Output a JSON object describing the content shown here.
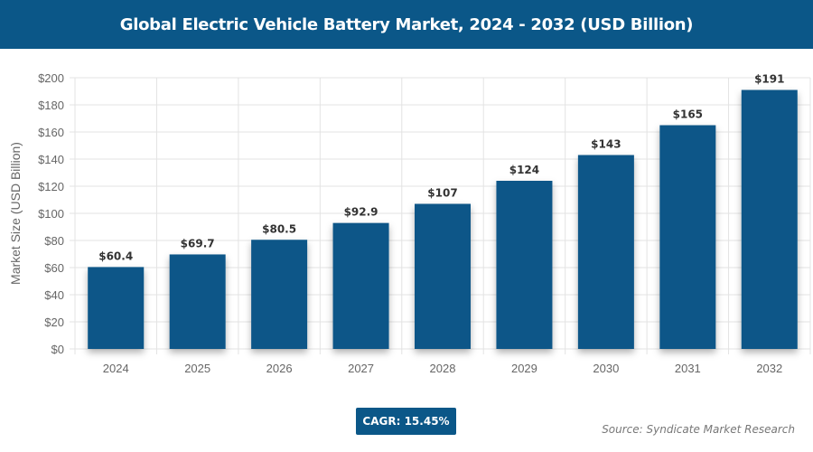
{
  "header": {
    "title": "Global Electric Vehicle Battery Market, 2024 - 2032 (USD Billion)"
  },
  "footer": {
    "cagr": "CAGR: 15.45%",
    "source": "Source: Syndicate Market Research"
  },
  "colors": {
    "bar": "#0b5788",
    "header": "#0b5788"
  },
  "chart_data": {
    "type": "bar",
    "title": "Global Electric Vehicle Battery Market, 2024 - 2032 (USD Billion)",
    "xlabel": "",
    "ylabel": "Market Size (USD Billion)",
    "categories": [
      "2024",
      "2025",
      "2026",
      "2027",
      "2028",
      "2029",
      "2030",
      "2031",
      "2032"
    ],
    "values": [
      60.4,
      69.7,
      80.5,
      92.9,
      107,
      124,
      143,
      165,
      191
    ],
    "data_labels": [
      "$60.4",
      "$69.7",
      "$80.5",
      "$92.9",
      "$107",
      "$124",
      "$143",
      "$165",
      "$191"
    ],
    "ylim": [
      0,
      200
    ],
    "yticks": [
      0,
      20,
      40,
      60,
      80,
      100,
      120,
      140,
      160,
      180,
      200
    ],
    "ytick_labels": [
      "$0",
      "$20",
      "$40",
      "$60",
      "$80",
      "$100",
      "$120",
      "$140",
      "$160",
      "$180",
      "$200"
    ],
    "grid": true,
    "legend": "none"
  }
}
